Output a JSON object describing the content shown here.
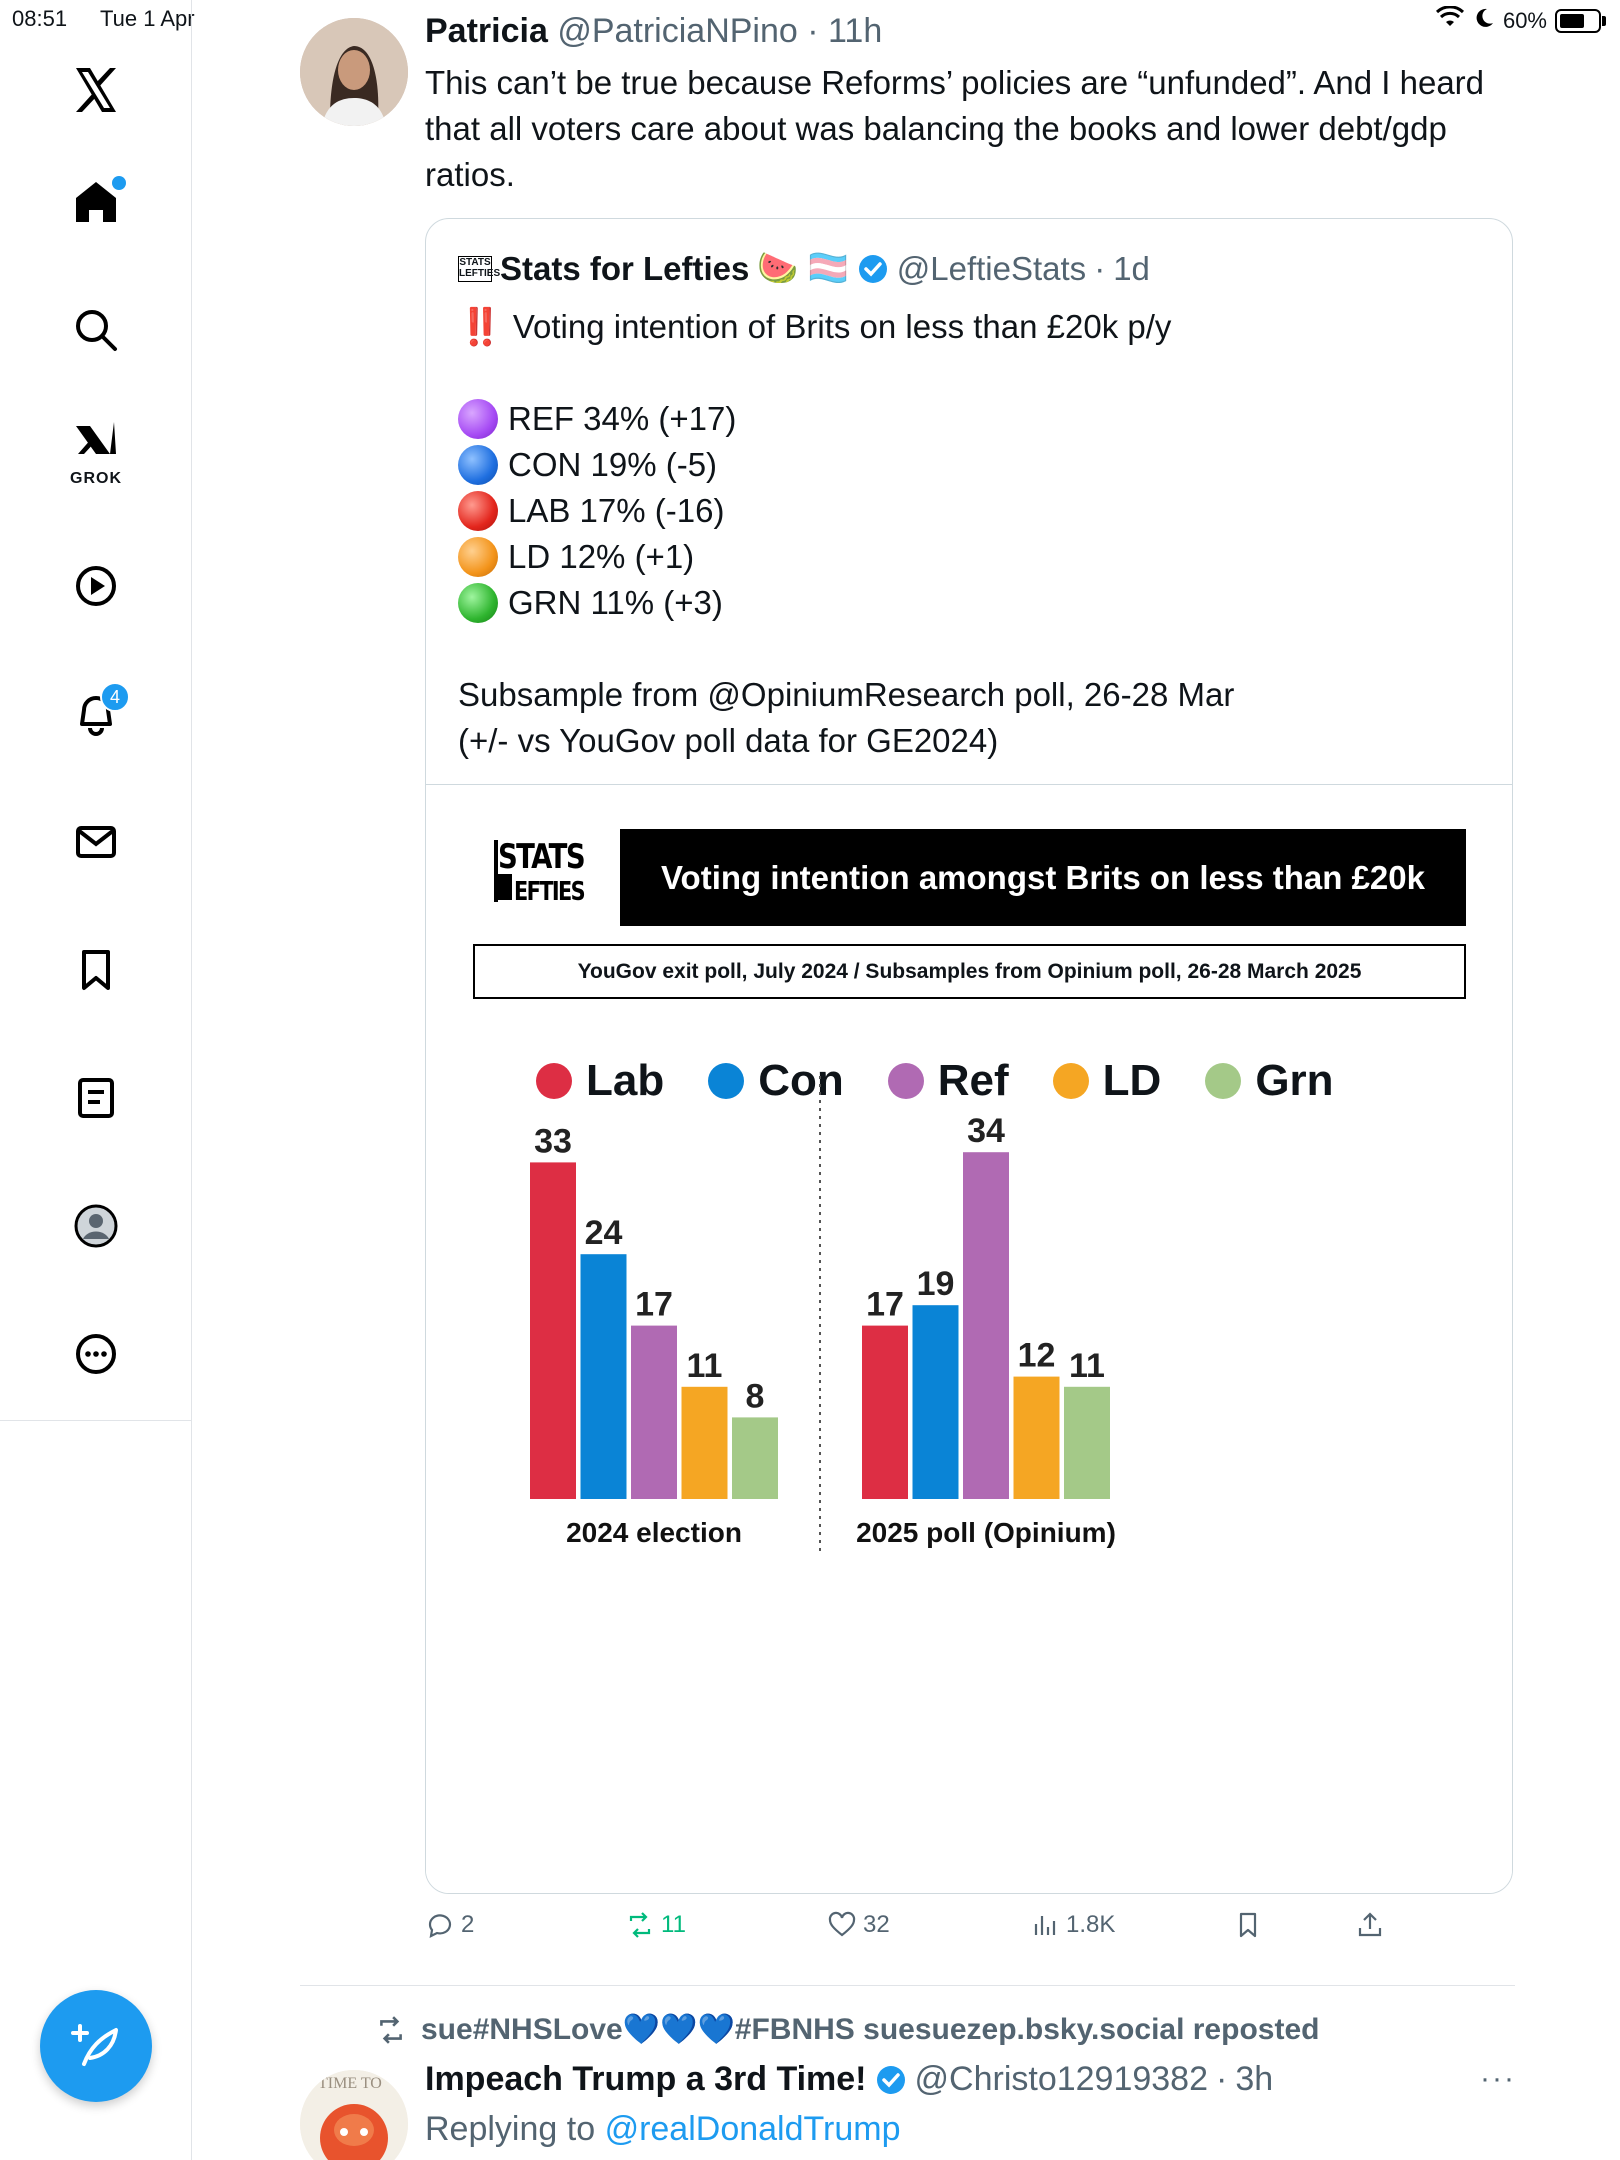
{
  "status_bar": {
    "time": "08:51",
    "date": "Tue 1 Apr",
    "battery": "60%"
  },
  "sidebar": {
    "items": [
      {
        "name": "x-logo-icon"
      },
      {
        "name": "home-icon"
      },
      {
        "name": "search-icon"
      },
      {
        "name": "grok-icon",
        "label": "GROK"
      },
      {
        "name": "video-icon"
      },
      {
        "name": "notifications-icon",
        "badge": "4"
      },
      {
        "name": "messages-icon"
      },
      {
        "name": "bookmarks-icon"
      },
      {
        "name": "lists-icon"
      },
      {
        "name": "profile-icon"
      },
      {
        "name": "more-icon"
      }
    ]
  },
  "tweet": {
    "author_name": "Patricia",
    "author_handle": "@PatriciaNPino",
    "time": "11h",
    "text": "This can’t be true because Reforms’ policies are “unfunded”. And I heard that all voters care about was balancing the books and lower debt/gdp ratios.",
    "quote": {
      "author_name": "Stats for Lefties",
      "author_emojis": "🍉 🏳️‍⚧️",
      "author_handle": "@LeftieStats",
      "time": "1d",
      "headline": "Voting intention of Brits on less than £20k p/y",
      "alarm": "‼️",
      "lines": [
        {
          "text": "REF 34% (+17)",
          "color": "#a64bf4"
        },
        {
          "text": "CON 19% (-5)",
          "color": "#1f6fe0"
        },
        {
          "text": "LAB 17% (-16)",
          "color": "#e3261d"
        },
        {
          "text": "LD 12% (+1)",
          "color": "#f3941b"
        },
        {
          "text": "GRN 11% (+3)",
          "color": "#2fb52f"
        }
      ],
      "footer_line1": "Subsample from @OpiniumResearch poll, 26-28 Mar",
      "footer_line2": "(+/- vs YouGov poll data for GE2024)"
    },
    "actions": {
      "replies": "2",
      "reposts": "11",
      "likes": "32",
      "views": "1.8K"
    }
  },
  "chart_data": {
    "type": "bar",
    "logo_text": "STATS LEFTIES",
    "title": "Voting intention amongst Brits on less than £20k",
    "subtitle": "YouGov exit poll, July 2024 / Subsamples from Opinium poll, 26-28 March 2025",
    "categories": [
      "2024 election",
      "2025 poll (Opinium)"
    ],
    "series": [
      {
        "name": "Lab",
        "color": "#dd2e44",
        "values": [
          33,
          17
        ]
      },
      {
        "name": "Con",
        "color": "#0a84d6",
        "values": [
          24,
          19
        ]
      },
      {
        "name": "Ref",
        "color": "#b06ab3",
        "values": [
          17,
          34
        ]
      },
      {
        "name": "LD",
        "color": "#f5a623",
        "values": [
          11,
          12
        ]
      },
      {
        "name": "Grn",
        "color": "#a4c988",
        "values": [
          8,
          11
        ]
      }
    ],
    "ylim": [
      0,
      34
    ]
  },
  "next_tweet": {
    "repost_by": "sue#NHSLove💙💙💙#FBNHS suesuezep.bsky.social reposted",
    "author_name": "Impeach Trump a 3rd Time!",
    "author_handle": "@Christo12919382",
    "time": "3h",
    "replying_prefix": "Replying to",
    "replying_to": "@realDonaldTrump",
    "avatar_text": "TIME TO"
  }
}
